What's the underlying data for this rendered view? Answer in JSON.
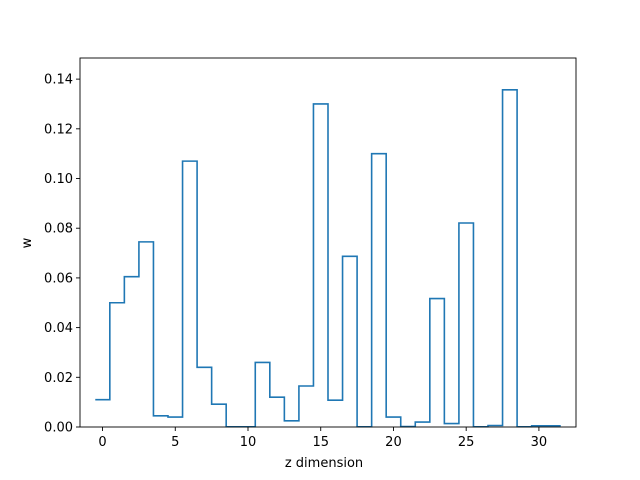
{
  "chart_data": {
    "type": "line",
    "style": "step-post",
    "title": "",
    "xlabel": "z dimension",
    "ylabel": "w",
    "xlim": [
      -1.55,
      32.55
    ],
    "ylim": [
      0,
      0.1485
    ],
    "xticks": [
      0,
      5,
      10,
      15,
      20,
      25,
      30
    ],
    "xtick_labels": [
      "0",
      "5",
      "10",
      "15",
      "20",
      "25",
      "30"
    ],
    "yticks": [
      0,
      0.02,
      0.04,
      0.06,
      0.08,
      0.1,
      0.12,
      0.14
    ],
    "ytick_labels": [
      "0.00",
      "0.02",
      "0.04",
      "0.06",
      "0.08",
      "0.10",
      "0.12",
      "0.14"
    ],
    "grid": false,
    "line_color": "#1f77b4",
    "series": [
      {
        "x": [
          0,
          1,
          2,
          3,
          4,
          5,
          6,
          7,
          8,
          9,
          10,
          11,
          12,
          13,
          14,
          15,
          16,
          17,
          18,
          19,
          20,
          21,
          22,
          23,
          24,
          25,
          26,
          27,
          28,
          29,
          30,
          31
        ],
        "values": [
          0.011,
          0.05,
          0.0605,
          0.0745,
          0.0045,
          0.004,
          0.107,
          0.024,
          0.0092,
          0.0001,
          0.0001,
          0.026,
          0.012,
          0.0025,
          0.0165,
          0.13,
          0.0108,
          0.0687,
          0.0001,
          0.11,
          0.004,
          0.0002,
          0.002,
          0.0517,
          0.0014,
          0.0821,
          0.0001,
          0.0006,
          0.1357,
          0.0001,
          0.0005,
          0.0005
        ]
      }
    ]
  }
}
